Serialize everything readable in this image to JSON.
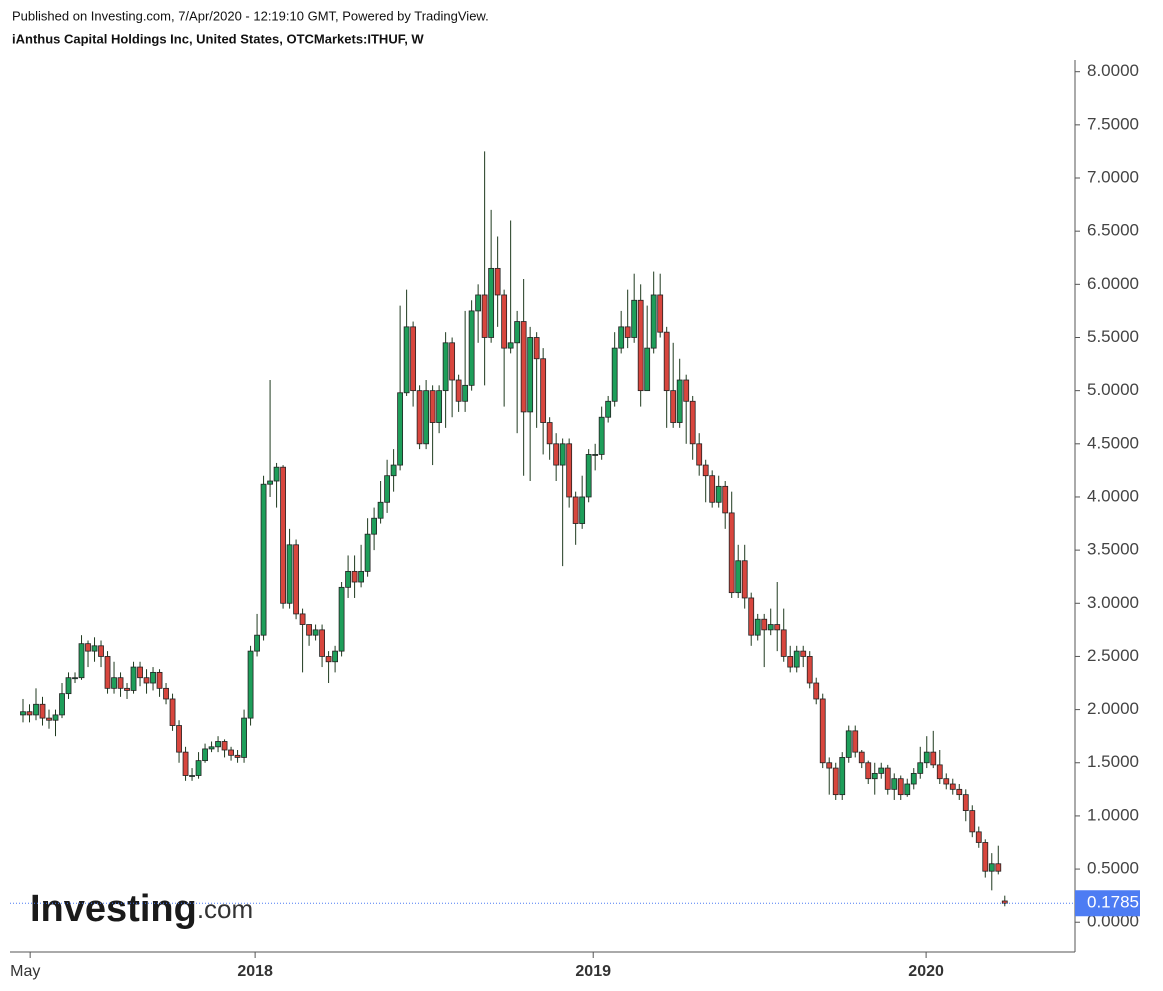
{
  "chart_data": {
    "type": "candlestick",
    "subtitle": "Published on Investing.com, 7/Apr/2020 - 12:19:10 GMT, Powered by TradingView.",
    "title": "iAnthus Capital Holdings Inc, United States, OTCMarkets:ITHUF, W",
    "logo_text": "Investing",
    "logo_suffix": ".com",
    "up_color": "#1e9e5a",
    "down_color": "#d8463e",
    "last_price_color": "#4d7cf3",
    "ylim": [
      -0.28,
      8.11
    ],
    "yticks": [
      {
        "value": 0,
        "label": "0.0000"
      },
      {
        "value": 0.5,
        "label": "0.5000"
      },
      {
        "value": 1,
        "label": "1.0000"
      },
      {
        "value": 1.5,
        "label": "1.5000"
      },
      {
        "value": 2,
        "label": "2.0000"
      },
      {
        "value": 2.5,
        "label": "2.5000"
      },
      {
        "value": 3,
        "label": "3.0000"
      },
      {
        "value": 3.5,
        "label": "3.5000"
      },
      {
        "value": 4,
        "label": "4.0000"
      },
      {
        "value": 4.5,
        "label": "4.5000"
      },
      {
        "value": 5,
        "label": "5.0000"
      },
      {
        "value": 5.5,
        "label": "5.5000"
      },
      {
        "value": 6,
        "label": "6.0000"
      },
      {
        "value": 6.5,
        "label": "6.5000"
      },
      {
        "value": 7,
        "label": "7.0000"
      },
      {
        "value": 7.5,
        "label": "7.5000"
      },
      {
        "value": 8,
        "label": "8.0000"
      }
    ],
    "xlim": [
      -2,
      161.8
    ],
    "xticks": [
      {
        "value": 1.1,
        "label": "May"
      },
      {
        "value": 35.7,
        "label": "2018"
      },
      {
        "value": 87.7,
        "label": "2019"
      },
      {
        "value": 138.9,
        "label": "2020"
      }
    ],
    "open": [
      1.95,
      1.98,
      1.95,
      2.05,
      1.92,
      1.9,
      1.95,
      2.15,
      2.3,
      2.3,
      2.62,
      2.55,
      2.6,
      2.5,
      2.2,
      2.3,
      2.2,
      2.18,
      2.4,
      2.3,
      2.25,
      2.35,
      2.2,
      2.1,
      1.85,
      1.6,
      1.38,
      1.38,
      1.52,
      1.63,
      1.65,
      1.7,
      1.62,
      1.57,
      1.55,
      1.92,
      2.55,
      2.7,
      4.12,
      4.15,
      4.28,
      3.0,
      3.55,
      2.9,
      2.8,
      2.7,
      2.75,
      2.5,
      2.45,
      2.55,
      3.15,
      3.3,
      3.2,
      3.3,
      3.65,
      3.8,
      3.95,
      4.2,
      4.3,
      4.98,
      5.6,
      5.0,
      4.5,
      5.0,
      4.7,
      5.0,
      5.45,
      5.1,
      4.9,
      5.05,
      5.75,
      5.9,
      5.5,
      6.15,
      5.9,
      5.4,
      5.45,
      5.65,
      4.8,
      5.5,
      5.3,
      4.7,
      4.5,
      4.3,
      4.5,
      4.0,
      3.75,
      4.0,
      4.4,
      4.4,
      4.75,
      4.9,
      5.4,
      5.6,
      5.5,
      5.85,
      5.0,
      5.4,
      5.9,
      5.55,
      5.0,
      4.7,
      5.1,
      4.9,
      4.5,
      4.3,
      4.2,
      3.95,
      4.1,
      3.85,
      3.1,
      3.4,
      3.05,
      2.7,
      2.85,
      2.75,
      2.8,
      2.75,
      2.5,
      2.4,
      2.55,
      2.5,
      2.25,
      2.1,
      1.5,
      1.45,
      1.2,
      1.55,
      1.8,
      1.6,
      1.5,
      1.35,
      1.4,
      1.45,
      1.25,
      1.35,
      1.2,
      1.3,
      1.4,
      1.5,
      1.6,
      1.48,
      1.35,
      1.3,
      1.25,
      1.2,
      1.05,
      0.85,
      0.75,
      0.48,
      0.55,
      0.2
    ],
    "high": [
      2.1,
      2.05,
      2.2,
      2.12,
      2.0,
      2.0,
      2.25,
      2.35,
      2.35,
      2.7,
      2.65,
      2.68,
      2.65,
      2.55,
      2.45,
      2.35,
      2.25,
      2.45,
      2.45,
      2.38,
      2.4,
      2.38,
      2.25,
      2.15,
      1.9,
      1.65,
      1.45,
      1.6,
      1.68,
      1.7,
      1.75,
      1.72,
      1.65,
      1.62,
      2.0,
      2.6,
      2.9,
      4.2,
      5.1,
      4.32,
      4.3,
      3.7,
      3.6,
      2.95,
      2.8,
      2.8,
      2.8,
      2.55,
      2.6,
      3.2,
      3.45,
      3.45,
      3.55,
      3.8,
      3.9,
      4.15,
      4.35,
      4.45,
      5.8,
      5.95,
      5.65,
      5.05,
      5.1,
      5.05,
      5.05,
      5.55,
      5.5,
      5.15,
      5.75,
      5.85,
      6.0,
      7.25,
      6.7,
      6.45,
      5.95,
      6.6,
      5.75,
      6.05,
      5.6,
      5.55,
      5.4,
      4.75,
      4.6,
      4.55,
      4.55,
      4.05,
      4.2,
      4.45,
      4.5,
      4.85,
      4.95,
      5.55,
      5.75,
      5.95,
      6.1,
      6.0,
      5.8,
      6.12,
      6.1,
      5.6,
      5.45,
      5.3,
      5.15,
      4.95,
      4.6,
      4.35,
      4.25,
      4.2,
      4.15,
      4.05,
      3.55,
      3.55,
      3.1,
      2.9,
      2.9,
      2.95,
      3.2,
      2.95,
      2.6,
      2.6,
      2.6,
      2.55,
      2.3,
      2.15,
      1.55,
      1.5,
      1.6,
      1.85,
      1.85,
      1.62,
      1.52,
      1.5,
      1.5,
      1.48,
      1.4,
      1.38,
      1.35,
      1.45,
      1.65,
      1.75,
      1.8,
      1.62,
      1.4,
      1.35,
      1.3,
      1.25,
      1.1,
      0.9,
      0.78,
      0.65,
      0.72,
      0.25
    ],
    "low": [
      1.88,
      1.88,
      1.9,
      1.85,
      1.82,
      1.75,
      1.92,
      2.1,
      2.25,
      2.28,
      2.4,
      2.45,
      2.4,
      2.15,
      2.15,
      2.12,
      2.1,
      2.15,
      2.22,
      2.15,
      2.18,
      2.12,
      2.05,
      1.8,
      1.5,
      1.33,
      1.33,
      1.35,
      1.5,
      1.6,
      1.6,
      1.55,
      1.52,
      1.5,
      1.5,
      1.85,
      2.5,
      2.65,
      4.0,
      3.9,
      2.95,
      2.95,
      2.85,
      2.35,
      2.6,
      2.65,
      2.4,
      2.25,
      2.35,
      2.5,
      3.05,
      3.05,
      3.15,
      3.25,
      3.5,
      3.75,
      3.85,
      4.05,
      4.25,
      4.95,
      4.85,
      4.45,
      4.45,
      4.3,
      4.6,
      4.65,
      4.75,
      4.8,
      4.8,
      5.0,
      5.45,
      5.05,
      5.45,
      5.6,
      4.85,
      5.35,
      4.6,
      4.2,
      4.15,
      4.65,
      4.4,
      4.35,
      4.15,
      3.35,
      3.9,
      3.55,
      3.7,
      3.95,
      4.25,
      4.35,
      4.7,
      4.85,
      5.35,
      5.4,
      5.45,
      4.85,
      5.0,
      5.35,
      5.5,
      4.65,
      4.65,
      4.65,
      4.5,
      4.35,
      4.2,
      3.95,
      3.9,
      3.9,
      3.7,
      3.05,
      3.05,
      2.95,
      2.6,
      2.65,
      2.4,
      2.7,
      2.55,
      2.45,
      2.35,
      2.35,
      2.4,
      2.2,
      2.05,
      1.45,
      1.2,
      1.15,
      1.15,
      1.5,
      1.55,
      1.45,
      1.3,
      1.2,
      1.35,
      1.2,
      1.15,
      1.15,
      1.18,
      1.25,
      1.35,
      1.45,
      1.45,
      1.3,
      1.25,
      1.2,
      1.15,
      0.95,
      0.8,
      0.7,
      0.42,
      0.3,
      0.45,
      0.15
    ],
    "close": [
      1.98,
      1.95,
      2.05,
      1.92,
      1.9,
      1.95,
      2.15,
      2.3,
      2.3,
      2.62,
      2.55,
      2.6,
      2.5,
      2.2,
      2.3,
      2.2,
      2.18,
      2.4,
      2.3,
      2.25,
      2.35,
      2.2,
      2.1,
      1.85,
      1.6,
      1.38,
      1.38,
      1.52,
      1.63,
      1.65,
      1.7,
      1.62,
      1.57,
      1.55,
      1.92,
      2.55,
      2.7,
      4.12,
      4.15,
      4.28,
      3.0,
      3.55,
      2.9,
      2.8,
      2.7,
      2.75,
      2.5,
      2.45,
      2.55,
      3.15,
      3.3,
      3.2,
      3.3,
      3.65,
      3.8,
      3.95,
      4.2,
      4.3,
      4.98,
      5.6,
      5.0,
      4.5,
      5.0,
      4.7,
      5.0,
      5.45,
      5.1,
      4.9,
      5.05,
      5.75,
      5.9,
      5.5,
      6.15,
      5.9,
      5.4,
      5.45,
      5.65,
      4.8,
      5.5,
      5.3,
      4.7,
      4.5,
      4.3,
      4.5,
      4.0,
      3.75,
      4.0,
      4.4,
      4.4,
      4.75,
      4.9,
      5.4,
      5.6,
      5.5,
      5.85,
      5.0,
      5.4,
      5.9,
      5.55,
      5.0,
      4.7,
      5.1,
      4.9,
      4.5,
      4.3,
      4.2,
      3.95,
      4.1,
      3.85,
      3.1,
      3.4,
      3.05,
      2.7,
      2.85,
      2.75,
      2.8,
      2.75,
      2.5,
      2.4,
      2.55,
      2.5,
      2.25,
      2.1,
      1.5,
      1.45,
      1.2,
      1.55,
      1.8,
      1.6,
      1.5,
      1.35,
      1.4,
      1.45,
      1.25,
      1.35,
      1.2,
      1.3,
      1.4,
      1.5,
      1.6,
      1.48,
      1.35,
      1.3,
      1.25,
      1.2,
      1.05,
      0.85,
      0.75,
      0.48,
      0.55,
      0.48,
      0.1785
    ]
  }
}
